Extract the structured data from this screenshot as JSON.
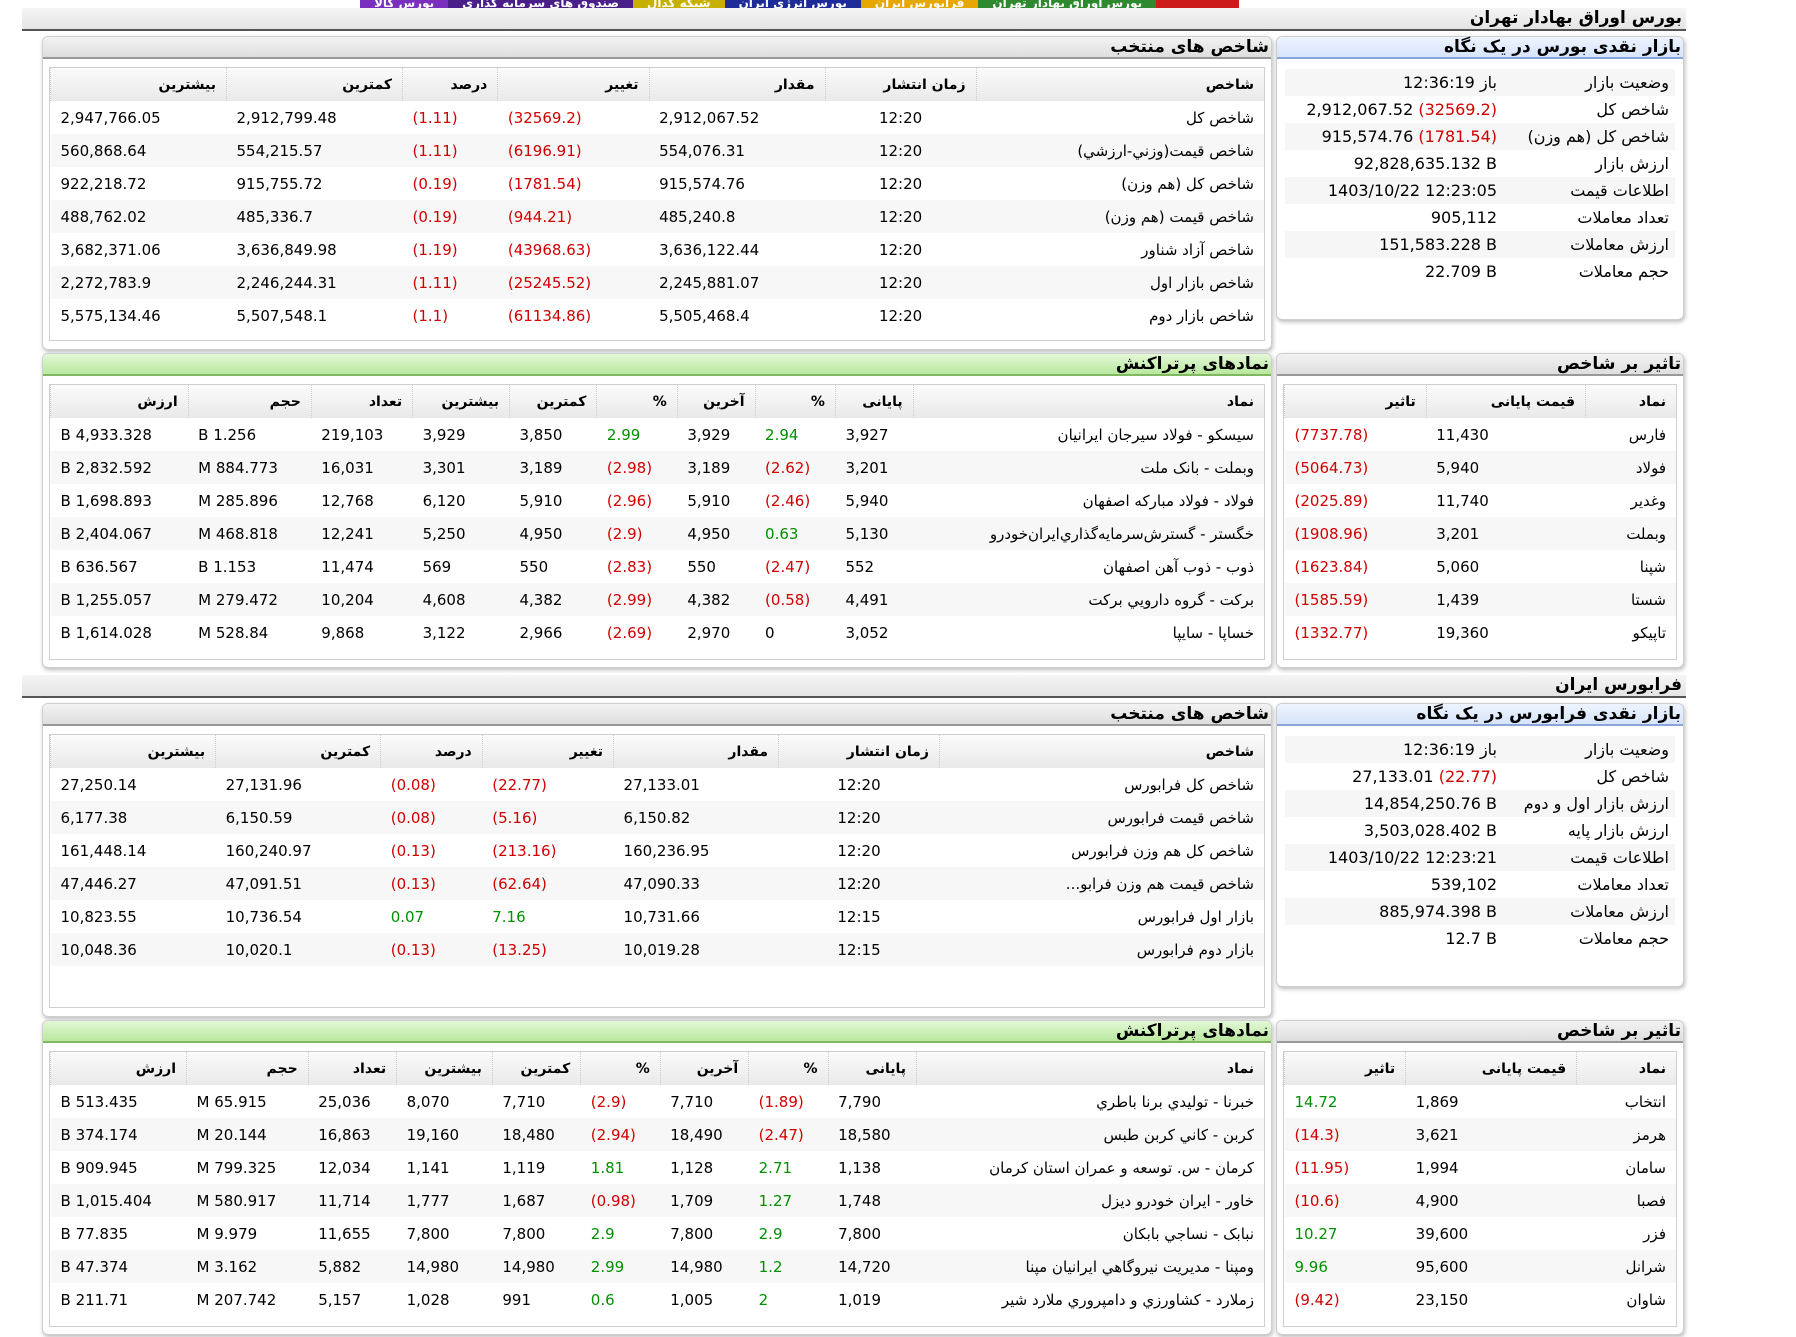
{
  "tabs": [
    {
      "label": "بورس کالا",
      "color": "#7b2fbf"
    },
    {
      "label": "صندوق های سرمایه گذاری",
      "color": "#4b1f8a"
    },
    {
      "label": "شبکه کدال",
      "color": "#c8b000"
    },
    {
      "label": "بورس انرژی ایران",
      "color": "#1e2c9a"
    },
    {
      "label": "فرابورس ایران",
      "color": "#e6a800"
    },
    {
      "label": "بورس اوراق بهادار تهران",
      "color": "#2f8a2f"
    },
    {
      "label": "",
      "color": "#cc1c1c"
    }
  ],
  "colors": {
    "negative": "#d00000",
    "positive": "#009000"
  },
  "tse": {
    "title": "بورس اوراق بهادار تهران",
    "summary": {
      "title": "بازار نقدی بورس در یک نگاه",
      "rows": [
        {
          "label": "وضعیت بازار",
          "value": "باز 12:36:19",
          "change": ""
        },
        {
          "label": "شاخص کل",
          "value": "2,912,067.52",
          "change": "(32569.2)"
        },
        {
          "label": "شاخص کل (هم وزن)",
          "value": "915,574.76",
          "change": "(1781.54)"
        },
        {
          "label": "ارزش بازار",
          "value": "92,828,635.132 B",
          "change": ""
        },
        {
          "label": "اطلاعات قیمت",
          "value": "1403/10/22 12:23:05",
          "change": ""
        },
        {
          "label": "تعداد معاملات",
          "value": "905,112",
          "change": ""
        },
        {
          "label": "ارزش معاملات",
          "value": "151,583.228 B",
          "change": ""
        },
        {
          "label": "حجم معاملات",
          "value": "22.709 B",
          "change": ""
        }
      ]
    },
    "indices": {
      "title": "شاخص های منتخب",
      "headers": [
        "شاخص",
        "زمان انتشار",
        "مقدار",
        "تغییر",
        "درصد",
        "کمترین",
        "بیشترین"
      ],
      "rows": [
        [
          "شاخص کل",
          "12:20",
          "2,912,067.52",
          "(32569.2)",
          "(1.11)",
          "2,912,799.48",
          "2,947,766.05"
        ],
        [
          "شاخص قيمت(وزني-ارزشي)",
          "12:20",
          "554,076.31",
          "(6196.91)",
          "(1.11)",
          "554,215.57",
          "560,868.64"
        ],
        [
          "شاخص کل (هم وزن)",
          "12:20",
          "915,574.76",
          "(1781.54)",
          "(0.19)",
          "915,755.72",
          "922,218.72"
        ],
        [
          "شاخص قیمت (هم وزن)",
          "12:20",
          "485,240.8",
          "(944.21)",
          "(0.19)",
          "485,336.7",
          "488,762.02"
        ],
        [
          "شاخص آزاد شناور",
          "12:20",
          "3,636,122.44",
          "(43968.63)",
          "(1.19)",
          "3,636,849.98",
          "3,682,371.06"
        ],
        [
          "شاخص بازار اول",
          "12:20",
          "2,245,881.07",
          "(25245.52)",
          "(1.11)",
          "2,246,244.31",
          "2,272,783.9"
        ],
        [
          "شاخص بازار دوم",
          "12:20",
          "5,505,468.4",
          "(61134.86)",
          "(1.1)",
          "5,507,548.1",
          "5,575,134.46"
        ]
      ]
    },
    "impact": {
      "title": "تاثیر بر شاخص",
      "headers": [
        "نماد",
        "قیمت پایانی",
        "تاثیر"
      ],
      "rows": [
        [
          "فارس",
          "11,430",
          "(7737.78)"
        ],
        [
          "فولاد",
          "5,940",
          "(5064.73)"
        ],
        [
          "وغدير",
          "11,740",
          "(2025.89)"
        ],
        [
          "وبملت",
          "3,201",
          "(1908.96)"
        ],
        [
          "شپنا",
          "5,060",
          "(1623.84)"
        ],
        [
          "شستا",
          "1,439",
          "(1585.59)"
        ],
        [
          "تاپيکو",
          "19,360",
          "(1332.77)"
        ]
      ]
    },
    "symbols": {
      "title": "نمادهای پرتراکنش",
      "headers": [
        "نماد",
        "پایانی",
        "%",
        "آخرین",
        "%",
        "کمترین",
        "بیشترین",
        "تعداد",
        "حجم",
        "ارزش"
      ],
      "rows": [
        [
          "سيسکو - فولاد سيرجان ايرانيان",
          "3,927",
          "2.94",
          "3,929",
          "2.99",
          "3,850",
          "3,929",
          "219,103",
          "1.256 B",
          "4,933.328 B"
        ],
        [
          "وبملت - بانک ملت",
          "3,201",
          "(2.62)",
          "3,189",
          "(2.98)",
          "3,189",
          "3,301",
          "16,031",
          "884.773 M",
          "2,832.592 B"
        ],
        [
          "فولاد - فولاد مبارکه اصفهان",
          "5,940",
          "(2.46)",
          "5,910",
          "(2.96)",
          "5,910",
          "6,120",
          "12,768",
          "285.896 M",
          "1,698.893 B"
        ],
        [
          "خگستر - گسترش‌سرمايه‌گذاري‌ايران‌خودرو",
          "5,130",
          "0.63",
          "4,950",
          "(2.9)",
          "4,950",
          "5,250",
          "12,241",
          "468.818 M",
          "2,404.067 B"
        ],
        [
          "ذوب - ذوب آهن اصفهان",
          "552",
          "(2.47)",
          "550",
          "(2.83)",
          "550",
          "569",
          "11,474",
          "1.153 B",
          "636.567 B"
        ],
        [
          "برکت - گروه دارويي برکت",
          "4,491",
          "(0.58)",
          "4,382",
          "(2.99)",
          "4,382",
          "4,608",
          "10,204",
          "279.472 M",
          "1,255.057 B"
        ],
        [
          "خساپا - سايپا",
          "3,052",
          "0",
          "2,970",
          "(2.69)",
          "2,966",
          "3,122",
          "9,868",
          "528.84 M",
          "1,614.028 B"
        ]
      ]
    }
  },
  "ifb": {
    "title": "فرابورس ایران",
    "summary": {
      "title": "بازار نقدی فرابورس در یک نگاه",
      "rows": [
        {
          "label": "وضعیت بازار",
          "value": "باز 12:36:19",
          "change": ""
        },
        {
          "label": "شاخص کل",
          "value": "27,133.01",
          "change": "(22.77)"
        },
        {
          "label": "ارزش بازار اول و دوم",
          "value": "14,854,250.76 B",
          "change": ""
        },
        {
          "label": "ارزش بازار پایه",
          "value": "3,503,028.402 B",
          "change": ""
        },
        {
          "label": "اطلاعات قیمت",
          "value": "1403/10/22 12:23:21",
          "change": ""
        },
        {
          "label": "تعداد معاملات",
          "value": "539,102",
          "change": ""
        },
        {
          "label": "ارزش معاملات",
          "value": "885,974.398 B",
          "change": ""
        },
        {
          "label": "حجم معاملات",
          "value": "12.7 B",
          "change": ""
        }
      ]
    },
    "indices": {
      "title": "شاخص های منتخب",
      "headers": [
        "شاخص",
        "زمان انتشار",
        "مقدار",
        "تغییر",
        "درصد",
        "کمترین",
        "بیشترین"
      ],
      "rows": [
        [
          "شاخص کل فرابورس",
          "12:20",
          "27,133.01",
          "(22.77)",
          "(0.08)",
          "27,131.96",
          "27,250.14"
        ],
        [
          "شاخص قيمت فرابورس",
          "12:20",
          "6,150.82",
          "(5.16)",
          "(0.08)",
          "6,150.59",
          "6,177.38"
        ],
        [
          "شاخص کل هم وزن فرابورس",
          "12:20",
          "160,236.95",
          "(213.16)",
          "(0.13)",
          "160,240.97",
          "161,448.14"
        ],
        [
          "شاخص قيمت هم وزن فرابو...",
          "12:20",
          "47,090.33",
          "(62.64)",
          "(0.13)",
          "47,091.51",
          "47,446.27"
        ],
        [
          "بازار اول فرابورس",
          "12:15",
          "10,731.66",
          "7.16",
          "0.07",
          "10,736.54",
          "10,823.55"
        ],
        [
          "بازار دوم فرابورس",
          "12:15",
          "10,019.28",
          "(13.25)",
          "(0.13)",
          "10,020.1",
          "10,048.36"
        ]
      ]
    },
    "impact": {
      "title": "تاثیر بر شاخص",
      "headers": [
        "نماد",
        "قیمت پایانی",
        "تاثیر"
      ],
      "rows": [
        [
          "انتخاب",
          "1,869",
          "14.72"
        ],
        [
          "هرمز",
          "3,621",
          "(14.3)"
        ],
        [
          "سامان",
          "1,994",
          "(11.95)"
        ],
        [
          "فصبا",
          "4,900",
          "(10.6)"
        ],
        [
          "فزر",
          "39,600",
          "10.27"
        ],
        [
          "شرانل",
          "95,600",
          "9.96"
        ],
        [
          "شاوان",
          "23,150",
          "(9.42)"
        ]
      ]
    },
    "symbols": {
      "title": "نمادهای پرتراکنش",
      "headers": [
        "نماد",
        "پایانی",
        "%",
        "آخرین",
        "%",
        "کمترین",
        "بیشترین",
        "تعداد",
        "حجم",
        "ارزش"
      ],
      "rows": [
        [
          "خبرنا - توليدي برنا باطري",
          "7,790",
          "(1.89)",
          "7,710",
          "(2.9)",
          "7,710",
          "8,070",
          "25,036",
          "65.915 M",
          "513.435 B"
        ],
        [
          "کربن - کاني کربن طبس",
          "18,580",
          "(2.47)",
          "18,490",
          "(2.94)",
          "18,480",
          "19,160",
          "16,863",
          "20.144 M",
          "374.174 B"
        ],
        [
          "کرمان - س. توسعه و عمران استان کرمان",
          "1,138",
          "2.71",
          "1,128",
          "1.81",
          "1,119",
          "1,141",
          "12,034",
          "799.325 M",
          "909.945 B"
        ],
        [
          "خاور - ايران خودرو ديزل",
          "1,748",
          "1.27",
          "1,709",
          "(0.98)",
          "1,687",
          "1,777",
          "11,714",
          "580.917 M",
          "1,015.404 B"
        ],
        [
          "نبابک - نساجي بابکان",
          "7,800",
          "2.9",
          "7,800",
          "2.9",
          "7,800",
          "7,800",
          "11,655",
          "9.979 M",
          "77.835 B"
        ],
        [
          "ومپنا - مديريت نيروگاهي ايرانيان مپنا",
          "14,720",
          "1.2",
          "14,980",
          "2.99",
          "14,980",
          "14,980",
          "5,882",
          "3.162 M",
          "47.374 B"
        ],
        [
          "زملارد - کشاورزي و دامپروري ملارد شير",
          "1,019",
          "2",
          "1,005",
          "0.6",
          "991",
          "1,028",
          "5,157",
          "207.742 M",
          "211.71 B"
        ]
      ]
    }
  }
}
